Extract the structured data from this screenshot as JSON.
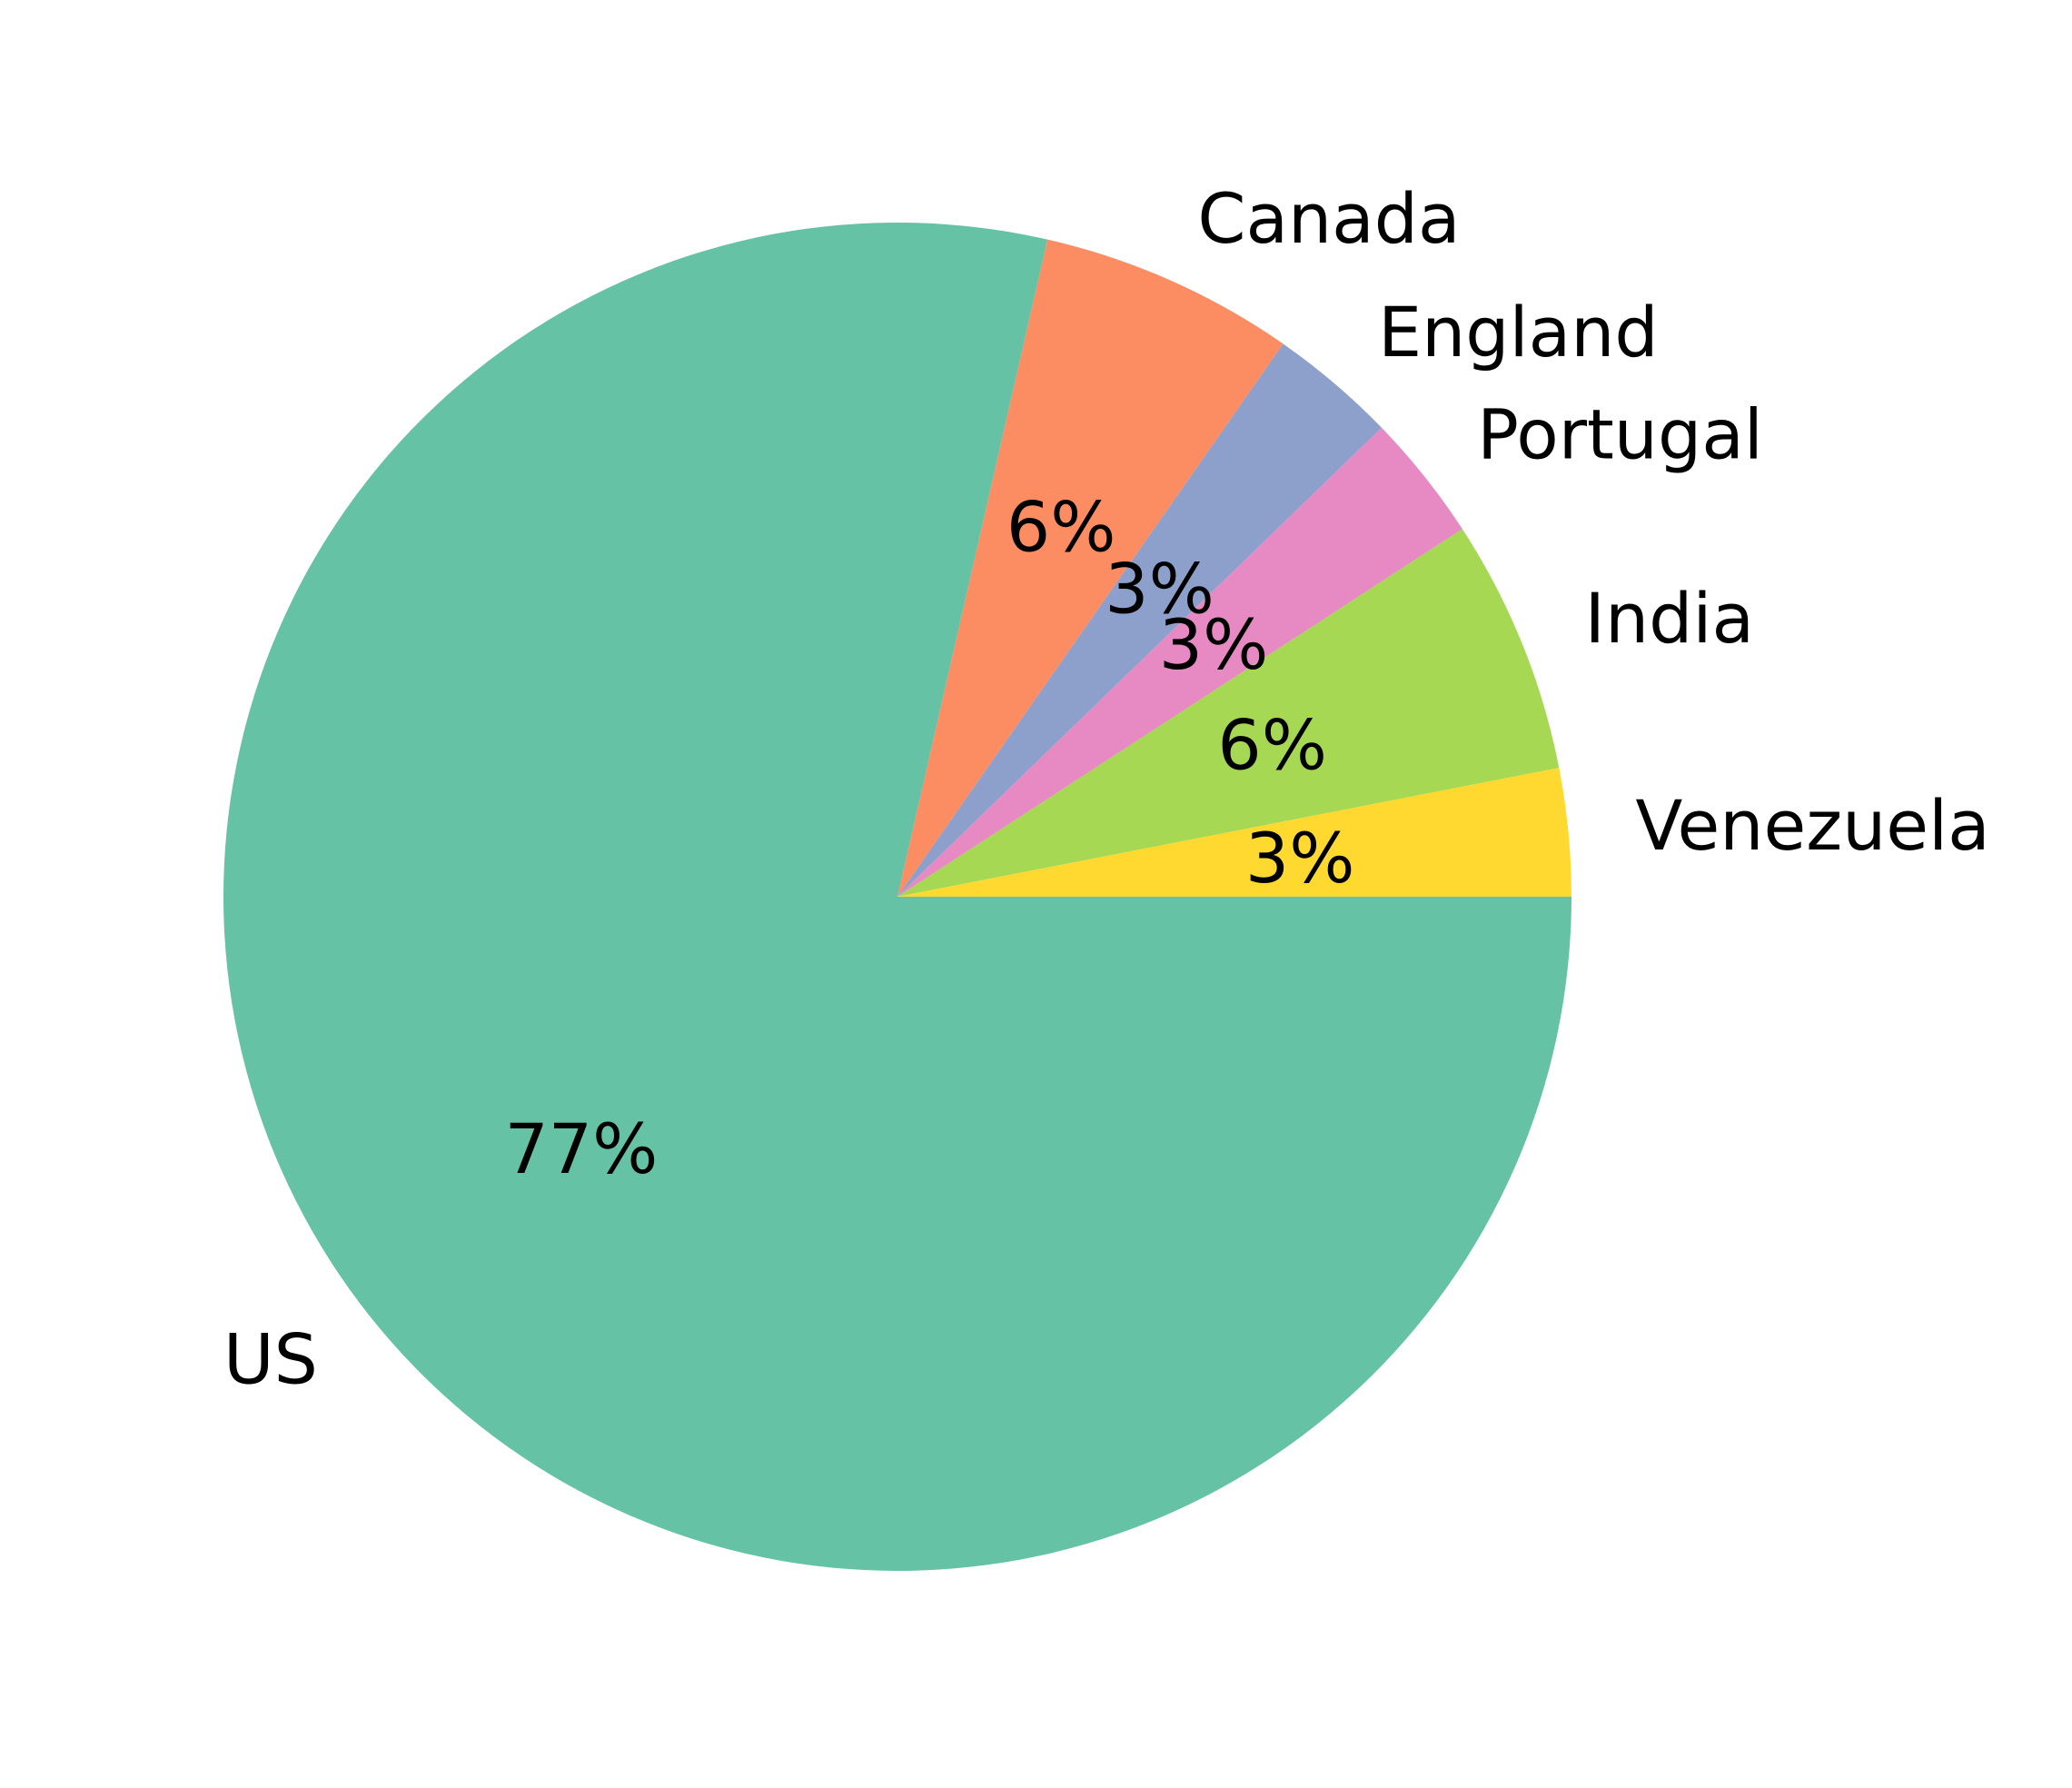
{
  "chart_data": {
    "type": "pie",
    "title": "",
    "categories": [
      "US",
      "Canada",
      "England",
      "Portugal",
      "India",
      "Venezuela"
    ],
    "values": [
      77,
      6,
      3,
      3,
      6,
      3
    ],
    "percent_labels": [
      "77%",
      "6%",
      "3%",
      "3%",
      "6%",
      "3%"
    ],
    "colors": [
      "#66c2a5",
      "#fc8d62",
      "#8da0cb",
      "#e78ac3",
      "#a6d854",
      "#ffd92f"
    ],
    "start_angle_deg": 0,
    "direction": "clockwise",
    "legend": "none"
  }
}
